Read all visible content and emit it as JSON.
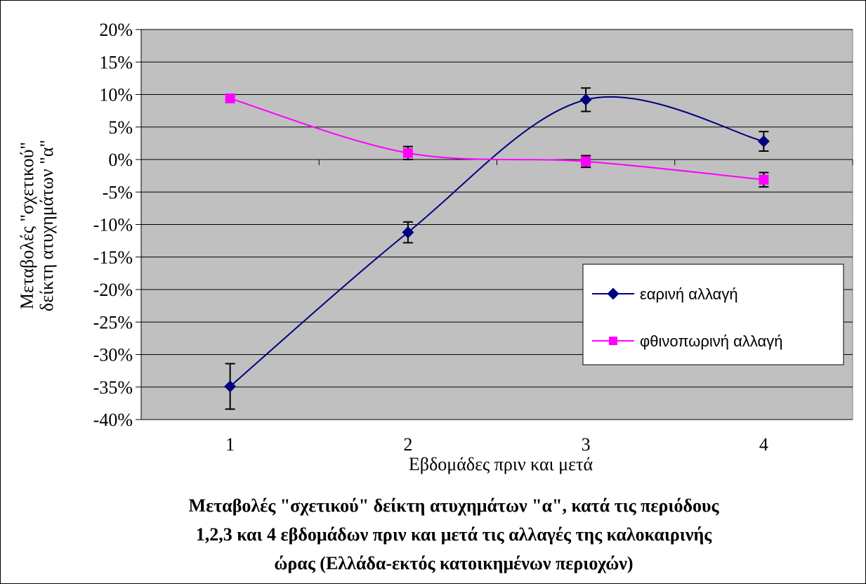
{
  "chart_data": {
    "type": "line",
    "title": "Μεταβολές \"σχετικού\" δείκτη ατυχημάτων \"α\", κατά τις περιόδους 1,2,3 και 4 εβδομάδων πριν και μετά τις αλλαγές της καλοκαιρινής ώρας (Ελλάδα-εκτός κατοικημένων περιοχών)",
    "title_lines": [
      "Μεταβολές \"σχετικού\" δείκτη ατυχημάτων \"α\", κατά τις περιόδους",
      "1,2,3 και 4 εβδομάδων πριν και μετά τις αλλαγές της καλοκαιρινής",
      "ώρας (Ελλάδα-εκτός κατοικημένων περιοχών)"
    ],
    "xlabel": "Εβδομάδες πριν και μετά",
    "ylabel_lines": [
      "Μεταβολές \"σχετικού\"",
      "δείκτη ατυχημάτων \"α\""
    ],
    "categories": [
      "1",
      "2",
      "3",
      "4"
    ],
    "ylim": [
      -40,
      20
    ],
    "y_ticks": [
      20,
      15,
      10,
      5,
      0,
      -5,
      -10,
      -15,
      -20,
      -25,
      -30,
      -35,
      -40
    ],
    "y_tick_labels": [
      "20%",
      "15%",
      "10%",
      "5%",
      "0%",
      "-5%",
      "-10%",
      "-15%",
      "-20%",
      "-25%",
      "-30%",
      "-35%",
      "-40%"
    ],
    "grid": true,
    "plot_background": "#c0c0c0",
    "legend_position": "right",
    "smoothed": true,
    "series": [
      {
        "name": "εαρινή αλλαγή",
        "color": "#000080",
        "marker": "diamond",
        "values": [
          -34.9,
          -11.2,
          9.2,
          2.8
        ],
        "error": [
          3.5,
          1.6,
          1.8,
          1.5
        ]
      },
      {
        "name": "φθινοπωρινή αλλαγή",
        "color": "#ff00ff",
        "marker": "square",
        "values": [
          9.4,
          1.0,
          -0.3,
          -3.1
        ],
        "error": [
          0,
          1.0,
          0.9,
          1.1
        ]
      }
    ]
  }
}
